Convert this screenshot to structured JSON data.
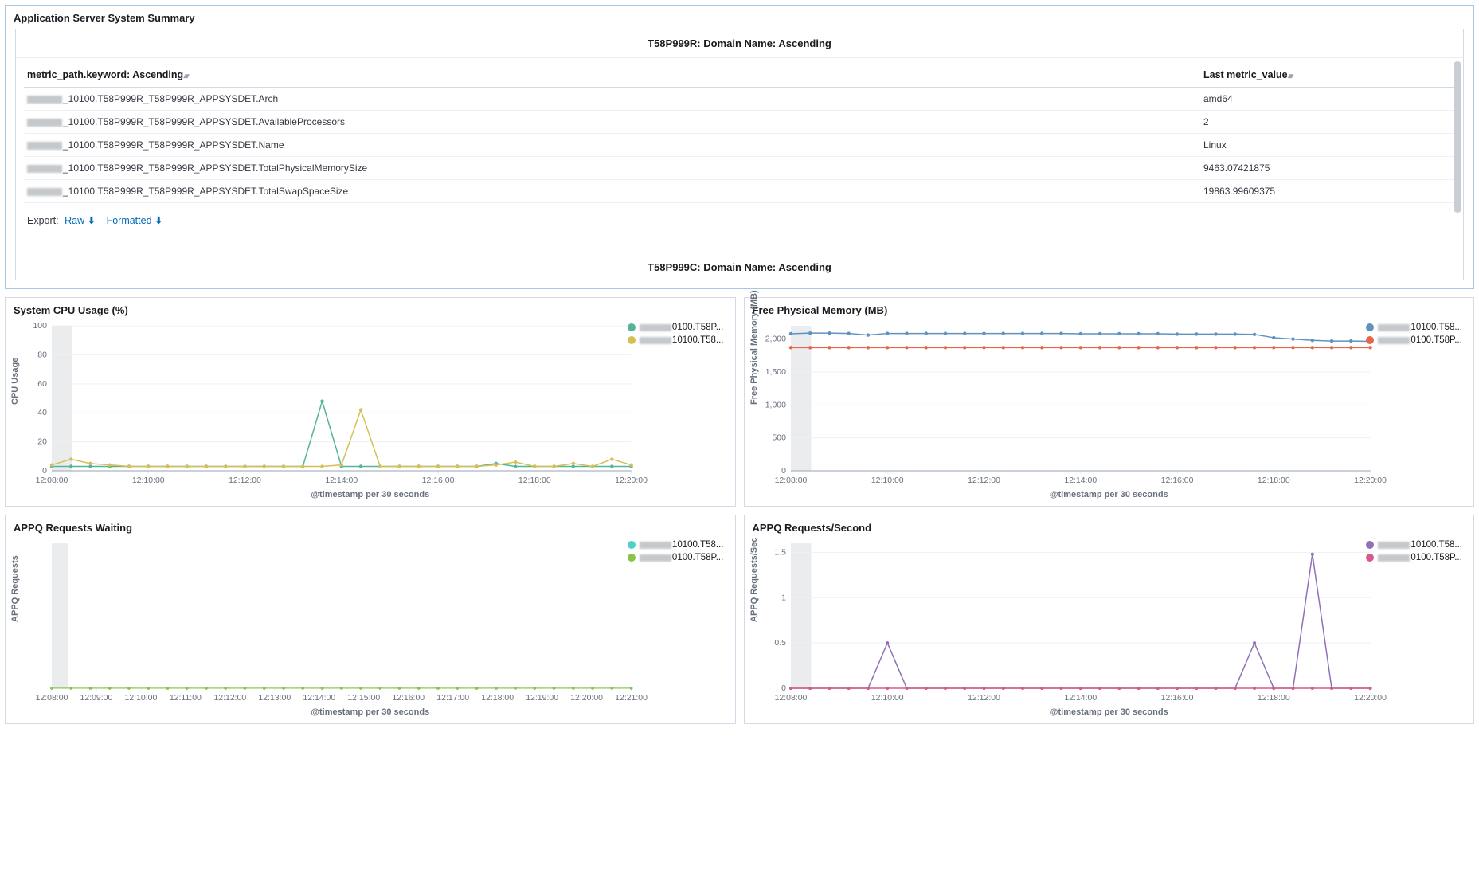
{
  "top_panel": {
    "title": "Application Server System Summary",
    "domain1_header": "T58P999R: Domain Name: Ascending",
    "domain2_header": "T58P999C: Domain Name: Ascending",
    "col_metric": "metric_path.keyword: Ascending",
    "col_value": "Last metric_value",
    "rows": [
      {
        "path": "_10100.T58P999R_T58P999R_APPSYSDET.Arch",
        "val": "amd64"
      },
      {
        "path": "_10100.T58P999R_T58P999R_APPSYSDET.AvailableProcessors",
        "val": "2"
      },
      {
        "path": "_10100.T58P999R_T58P999R_APPSYSDET.Name",
        "val": "Linux"
      },
      {
        "path": "_10100.T58P999R_T58P999R_APPSYSDET.TotalPhysicalMemorySize",
        "val": "9463.07421875"
      },
      {
        "path": "_10100.T58P999R_T58P999R_APPSYSDET.TotalSwapSpaceSize",
        "val": "19863.99609375"
      }
    ],
    "export_label": "Export:",
    "export_raw": "Raw",
    "export_formatted": "Formatted"
  },
  "charts": {
    "x_label": "@timestamp per 30 seconds",
    "legend_a": "0100.T58P...",
    "legend_b": "10100.T58...",
    "legend_c": "0100.T58...",
    "legend_d": "0100.T58P...",
    "cpu": {
      "title": "System CPU Usage (%)",
      "type": "line",
      "ylabel": "CPU Usage",
      "ylim": [
        0,
        100
      ],
      "yticks": [
        0,
        20,
        40,
        60,
        80,
        100
      ],
      "xticks": [
        "12:08:00",
        "12:10:00",
        "12:12:00",
        "12:14:00",
        "12:16:00",
        "12:18:00",
        "12:20:00"
      ],
      "colors": [
        "#54b399",
        "#d6bf57"
      ],
      "marker_radius": 2.2,
      "line_width": 1.5,
      "plotband_x": [
        0,
        0.035
      ],
      "series": [
        [
          3,
          3,
          3,
          3,
          3,
          3,
          3,
          3,
          3,
          3,
          3,
          3,
          3,
          3,
          48,
          3,
          3,
          3,
          3,
          3,
          3,
          3,
          3,
          5,
          3,
          3,
          3,
          3,
          3,
          3,
          3
        ],
        [
          4,
          8,
          5,
          4,
          3,
          3,
          3,
          3,
          3,
          3,
          3,
          3,
          3,
          3,
          3,
          4,
          42,
          3,
          3,
          3,
          3,
          3,
          3,
          4,
          6,
          3,
          3,
          5,
          3,
          8,
          4
        ]
      ]
    },
    "mem": {
      "title": "Free Physical Memory (MB)",
      "type": "line",
      "ylabel": "Free Physical Memory (MB)",
      "ylim": [
        0,
        2200
      ],
      "yticks": [
        0,
        500,
        1000,
        1500,
        2000
      ],
      "xticks": [
        "12:08:00",
        "12:10:00",
        "12:12:00",
        "12:14:00",
        "12:16:00",
        "12:18:00",
        "12:20:00"
      ],
      "colors": [
        "#6092c0",
        "#e7664c"
      ],
      "marker_radius": 2.2,
      "line_width": 1.5,
      "plotband_x": [
        0,
        0.035
      ],
      "series": [
        [
          2080,
          2090,
          2090,
          2085,
          2060,
          2085,
          2085,
          2085,
          2085,
          2085,
          2085,
          2085,
          2085,
          2085,
          2085,
          2080,
          2080,
          2080,
          2080,
          2080,
          2075,
          2075,
          2075,
          2075,
          2070,
          2020,
          2000,
          1980,
          1970,
          1970,
          1965
        ],
        [
          1870,
          1870,
          1870,
          1870,
          1870,
          1870,
          1870,
          1870,
          1870,
          1870,
          1870,
          1870,
          1870,
          1870,
          1870,
          1870,
          1870,
          1870,
          1870,
          1870,
          1870,
          1870,
          1870,
          1870,
          1870,
          1870,
          1870,
          1870,
          1870,
          1870,
          1870
        ]
      ]
    },
    "wait": {
      "title": "APPQ Requests Waiting",
      "type": "line",
      "ylabel": "APPQ Requests",
      "ylim": [
        0,
        1
      ],
      "yticks": [],
      "xticks": [
        "12:08:00",
        "12:09:00",
        "12:10:00",
        "12:11:00",
        "12:12:00",
        "12:13:00",
        "12:14:00",
        "12:15:00",
        "12:16:00",
        "12:17:00",
        "12:18:00",
        "12:19:00",
        "12:20:00",
        "12:21:00"
      ],
      "colors": [
        "#4dd2ca",
        "#8bc34a"
      ],
      "marker_radius": 1.8,
      "line_width": 1.2,
      "plotband_x": [
        0,
        0.028
      ],
      "series": [
        [
          0,
          0,
          0,
          0,
          0,
          0,
          0,
          0,
          0,
          0,
          0,
          0,
          0,
          0,
          0,
          0,
          0,
          0,
          0,
          0,
          0,
          0,
          0,
          0,
          0,
          0,
          0,
          0,
          0,
          0,
          0
        ],
        [
          0,
          0,
          0,
          0,
          0,
          0,
          0,
          0,
          0,
          0,
          0,
          0,
          0,
          0,
          0,
          0,
          0,
          0,
          0,
          0,
          0,
          0,
          0,
          0,
          0,
          0,
          0,
          0,
          0,
          0,
          0
        ]
      ]
    },
    "rps": {
      "title": "APPQ Requests/Second",
      "type": "line",
      "ylabel": "APPQ Requests/Sec",
      "ylim": [
        0,
        1.6
      ],
      "yticks": [
        0,
        0.5,
        1,
        1.5
      ],
      "xticks": [
        "12:08:00",
        "12:10:00",
        "12:12:00",
        "12:14:00",
        "12:16:00",
        "12:18:00",
        "12:20:00"
      ],
      "colors": [
        "#9170b8",
        "#d75a8b"
      ],
      "marker_radius": 2,
      "line_width": 1.5,
      "plotband_x": [
        0,
        0.035
      ],
      "series": [
        [
          0,
          0,
          0,
          0,
          0,
          0.5,
          0,
          0,
          0,
          0,
          0,
          0,
          0,
          0,
          0,
          0,
          0,
          0,
          0,
          0,
          0,
          0,
          0,
          0,
          0.5,
          0,
          0,
          1.48,
          0,
          0,
          0
        ],
        [
          0,
          0,
          0,
          0,
          0,
          0,
          0,
          0,
          0,
          0,
          0,
          0,
          0,
          0,
          0,
          0,
          0,
          0,
          0,
          0,
          0,
          0,
          0,
          0,
          0,
          0,
          0,
          0,
          0,
          0,
          0
        ]
      ]
    }
  }
}
